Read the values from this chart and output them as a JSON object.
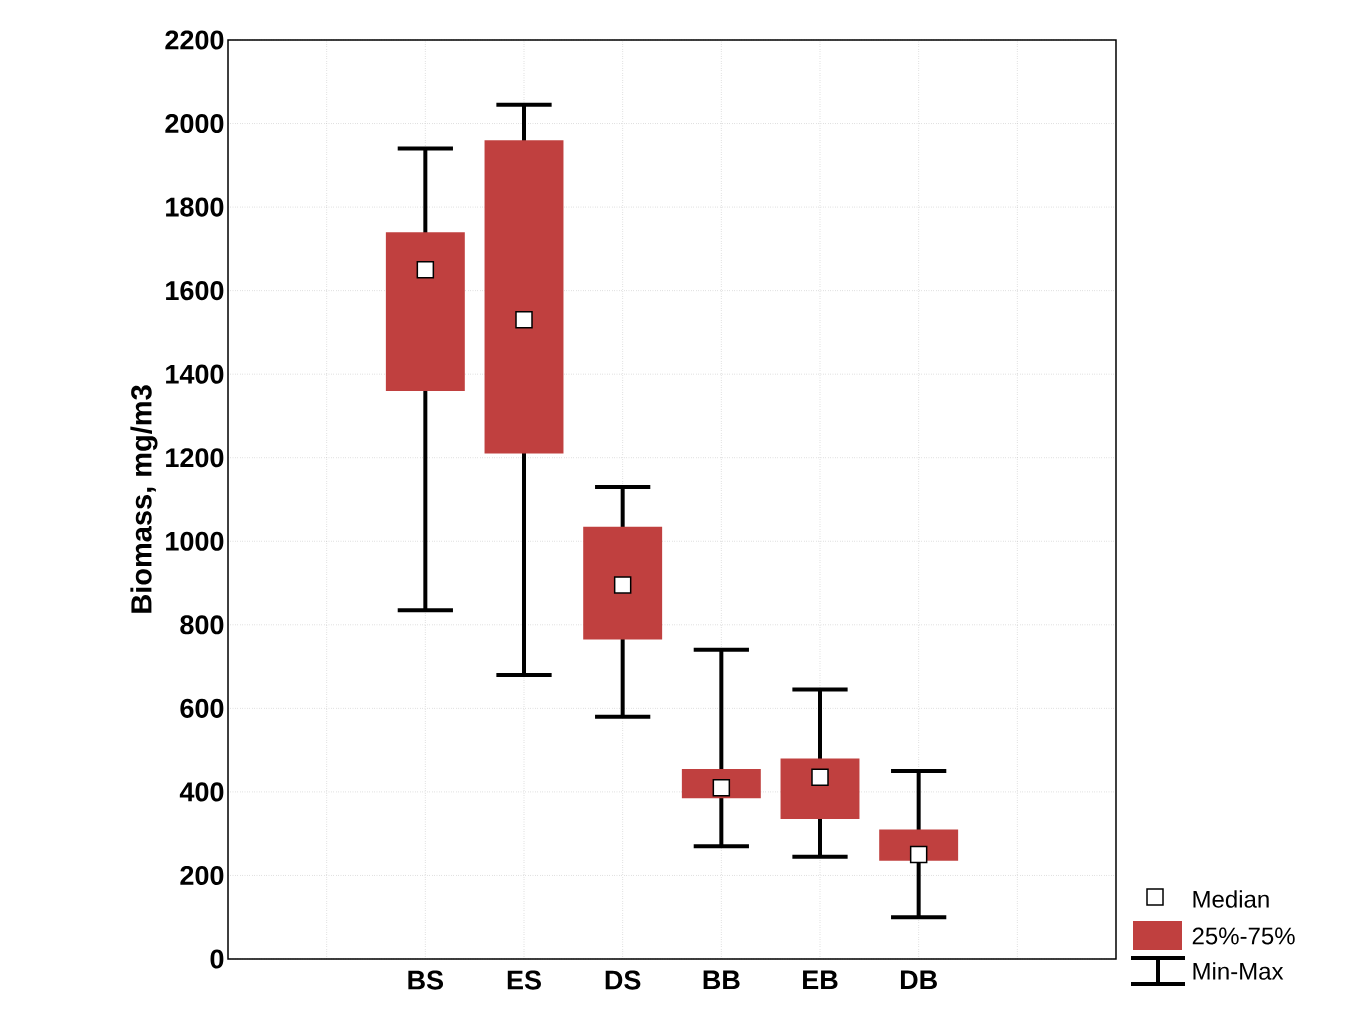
{
  "chart_data": {
    "type": "box",
    "ylabel": "Biomass, mg/m3",
    "categories": [
      "BS",
      "ES",
      "DS",
      "BB",
      "EB",
      "DB"
    ],
    "ylim": [
      0,
      2200
    ],
    "yticks": [
      0,
      200,
      400,
      600,
      800,
      1000,
      1200,
      1400,
      1600,
      1800,
      2000,
      2200
    ],
    "grid": true,
    "legend": "bottom right",
    "marker": "square",
    "series": [
      {
        "name": "25%-75%",
        "color": "#c0403f",
        "boxes": [
          {
            "low": 835,
            "q1": 1360,
            "median": 1650,
            "q3": 1740,
            "high": 1940
          },
          {
            "low": 680,
            "q1": 1210,
            "median": 1530,
            "q3": 1960,
            "high": 2045
          },
          {
            "low": 580,
            "q1": 765,
            "median": 895,
            "q3": 1035,
            "high": 1130
          },
          {
            "low": 270,
            "q1": 385,
            "median": 410,
            "q3": 455,
            "high": 740
          },
          {
            "low": 245,
            "q1": 335,
            "median": 435,
            "q3": 480,
            "high": 645
          },
          {
            "low": 100,
            "q1": 235,
            "median": 250,
            "q3": 310,
            "high": 450
          }
        ]
      }
    ],
    "annotations": [
      "Median",
      "Min-Max"
    ]
  }
}
